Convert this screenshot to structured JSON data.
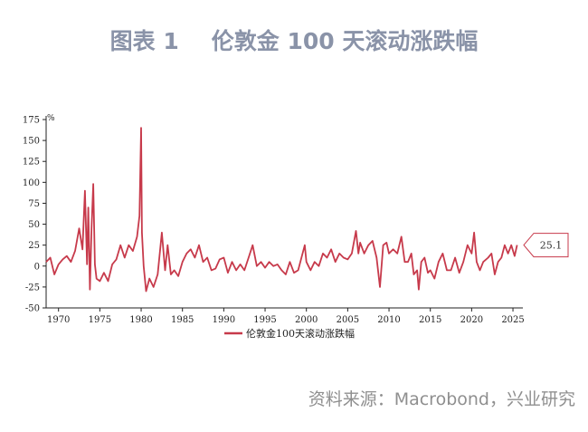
{
  "title": {
    "label": "图表 1",
    "text": "伦敦金 100 天滚动涨跌幅"
  },
  "source": "资料来源：Macrobond，兴业研究",
  "chart_data": {
    "type": "line",
    "ylabel": "%",
    "ylim": [
      -50,
      175
    ],
    "xlim": [
      1968.5,
      2026.2
    ],
    "yticks": [
      175,
      150,
      125,
      100,
      75,
      50,
      25,
      0,
      -25,
      -50
    ],
    "xticks": [
      1970,
      1975,
      1980,
      1985,
      1990,
      1995,
      2000,
      2005,
      2010,
      2015,
      2020,
      2025
    ],
    "line_color": "#c73a4b",
    "last_value_label": "25.1",
    "series": [
      {
        "name": "伦敦金100天滚动涨跌幅",
        "x": [
          1968.5,
          1969.0,
          1969.5,
          1970.0,
          1970.5,
          1971.0,
          1971.5,
          1972.0,
          1972.5,
          1972.9,
          1973.2,
          1973.45,
          1973.6,
          1973.8,
          1974.0,
          1974.2,
          1974.4,
          1974.6,
          1975.0,
          1975.5,
          1976.0,
          1976.5,
          1977.0,
          1977.5,
          1978.0,
          1978.5,
          1979.0,
          1979.5,
          1979.8,
          1980.0,
          1980.1,
          1980.3,
          1980.6,
          1981.0,
          1981.5,
          1982.0,
          1982.5,
          1982.9,
          1983.2,
          1983.6,
          1984.0,
          1984.5,
          1985.0,
          1985.5,
          1986.0,
          1986.5,
          1987.0,
          1987.5,
          1988.0,
          1988.5,
          1989.0,
          1989.5,
          1990.0,
          1990.5,
          1991.0,
          1991.5,
          1992.0,
          1992.5,
          1993.0,
          1993.5,
          1994.0,
          1994.5,
          1995.0,
          1995.5,
          1996.0,
          1996.5,
          1997.0,
          1997.5,
          1998.0,
          1998.5,
          1999.0,
          1999.8,
          2000.0,
          2000.5,
          2001.0,
          2001.5,
          2002.0,
          2002.5,
          2003.0,
          2003.5,
          2004.0,
          2004.5,
          2005.0,
          2005.5,
          2006.0,
          2006.3,
          2006.5,
          2007.0,
          2007.5,
          2008.0,
          2008.5,
          2008.9,
          2009.3,
          2009.7,
          2010.0,
          2010.5,
          2011.0,
          2011.5,
          2011.9,
          2012.3,
          2012.7,
          2013.0,
          2013.4,
          2013.6,
          2013.9,
          2014.3,
          2014.7,
          2015.0,
          2015.5,
          2016.0,
          2016.5,
          2017.0,
          2017.5,
          2018.0,
          2018.5,
          2019.0,
          2019.5,
          2020.0,
          2020.3,
          2020.6,
          2021.0,
          2021.4,
          2022.0,
          2022.4,
          2022.8,
          2023.2,
          2023.6,
          2024.0,
          2024.4,
          2024.8,
          2025.2,
          2025.5
        ],
        "values": [
          5,
          10,
          -10,
          2,
          8,
          12,
          5,
          18,
          45,
          20,
          90,
          2,
          70,
          -28,
          45,
          98,
          2,
          -15,
          -18,
          -8,
          -18,
          2,
          8,
          25,
          10,
          25,
          18,
          35,
          60,
          165,
          40,
          0,
          -30,
          -15,
          -25,
          -10,
          40,
          -5,
          25,
          -10,
          -5,
          -12,
          5,
          15,
          20,
          10,
          25,
          5,
          10,
          -5,
          -3,
          8,
          10,
          -8,
          5,
          -5,
          2,
          -5,
          10,
          25,
          0,
          5,
          -2,
          5,
          0,
          2,
          -5,
          -10,
          5,
          -8,
          -5,
          25,
          5,
          -5,
          5,
          0,
          15,
          10,
          20,
          5,
          15,
          10,
          8,
          15,
          42,
          15,
          28,
          15,
          25,
          30,
          10,
          -25,
          25,
          28,
          15,
          20,
          15,
          35,
          5,
          5,
          15,
          -10,
          -5,
          -28,
          5,
          10,
          -8,
          -5,
          -15,
          5,
          15,
          -5,
          -5,
          10,
          -8,
          5,
          25,
          15,
          40,
          5,
          -5,
          5,
          10,
          15,
          -10,
          5,
          10,
          25,
          15,
          25,
          12,
          25.1
        ]
      }
    ]
  }
}
